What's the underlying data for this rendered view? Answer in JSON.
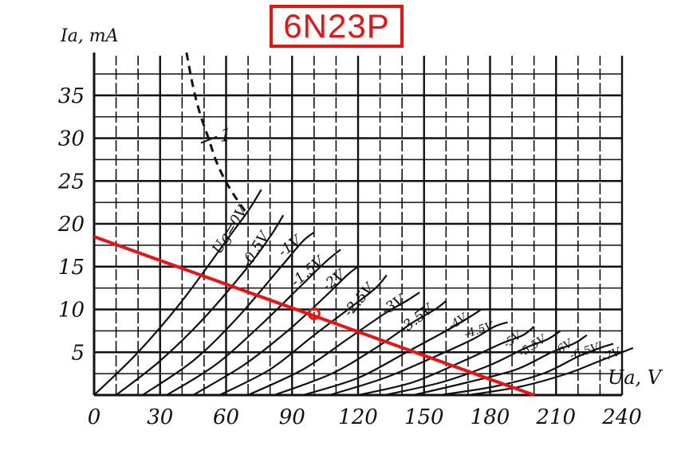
{
  "title": "6N23P",
  "colors": {
    "grid": "#111111",
    "curve": "#111111",
    "load_line": "#ee1111",
    "title": "#ee1111"
  },
  "chart_data": {
    "type": "line",
    "title": "6N23P",
    "ylabel": "Ia, mA",
    "xlabel": "Ua, V",
    "xlim": [
      0,
      240
    ],
    "ylim": [
      0,
      40
    ],
    "x_ticks": [
      "0",
      "30",
      "60",
      "90",
      "120",
      "150",
      "180",
      "210",
      "240"
    ],
    "x_tick_values": [
      0,
      30,
      60,
      90,
      120,
      150,
      180,
      210,
      240
    ],
    "y_ticks": [
      "5",
      "10",
      "15",
      "20",
      "25",
      "30",
      "35"
    ],
    "y_tick_values": [
      5,
      10,
      15,
      20,
      25,
      30,
      35
    ],
    "grid": true,
    "series": [
      {
        "name": "Ug=0V",
        "label": "Ug=0V",
        "x": [
          0,
          20,
          40,
          60,
          70,
          76
        ],
        "y": [
          0,
          5,
          11,
          18,
          21.5,
          24
        ]
      },
      {
        "name": "-0.5V",
        "label": "-0.5V",
        "x": [
          10,
          30,
          50,
          70,
          80,
          86
        ],
        "y": [
          0,
          4,
          9,
          15,
          18.5,
          21
        ]
      },
      {
        "name": "-1V",
        "label": "-1V",
        "x": [
          22,
          45,
          65,
          85,
          95,
          100
        ],
        "y": [
          0,
          4,
          9,
          15,
          18,
          19
        ]
      },
      {
        "name": "-1.5V",
        "label": "-1.5V",
        "x": [
          33,
          55,
          75,
          95,
          105,
          112
        ],
        "y": [
          0,
          3.5,
          8,
          13,
          15.5,
          17
        ]
      },
      {
        "name": "-2V",
        "label": "-2V",
        "x": [
          45,
          68,
          88,
          105,
          115,
          120
        ],
        "y": [
          0,
          3.5,
          7.5,
          11.5,
          14,
          15
        ]
      },
      {
        "name": "-2.5V",
        "label": "-2.5V",
        "x": [
          57,
          80,
          100,
          118,
          128,
          133
        ],
        "y": [
          0,
          3,
          7,
          10.5,
          12.5,
          14
        ]
      },
      {
        "name": "-3V",
        "label": "-3V",
        "x": [
          70,
          95,
          115,
          132,
          142,
          148
        ],
        "y": [
          0,
          3,
          6.5,
          9.5,
          11,
          12
        ]
      },
      {
        "name": "-3.5V",
        "label": "-3.5V",
        "x": [
          82,
          108,
          128,
          145,
          155,
          160
        ],
        "y": [
          0,
          2.5,
          5.5,
          8.5,
          10,
          11
        ]
      },
      {
        "name": "-4V",
        "label": "-4V",
        "x": [
          95,
          120,
          142,
          160,
          170,
          176
        ],
        "y": [
          0,
          2,
          5,
          7.5,
          9,
          10
        ]
      },
      {
        "name": "-4.5V",
        "label": "-4.5V",
        "x": [
          107,
          132,
          155,
          172,
          182,
          188
        ],
        "y": [
          0,
          2,
          4.5,
          6.5,
          8,
          8.5
        ]
      },
      {
        "name": "-5V",
        "label": "-5V",
        "x": [
          120,
          145,
          168,
          185,
          195,
          200
        ],
        "y": [
          0,
          1.5,
          4,
          6,
          7,
          8
        ]
      },
      {
        "name": "-5.5V",
        "label": "-5.5V",
        "x": [
          132,
          158,
          180,
          196,
          206,
          212
        ],
        "y": [
          0,
          1.5,
          3.5,
          5.5,
          6.5,
          7.5
        ]
      },
      {
        "name": "-6V",
        "label": "-6V",
        "x": [
          145,
          170,
          192,
          208,
          218,
          224
        ],
        "y": [
          0,
          1.5,
          3,
          5,
          6,
          7
        ]
      },
      {
        "name": "-6.5V",
        "label": "-6.5V",
        "x": [
          157,
          182,
          204,
          220,
          230,
          236
        ],
        "y": [
          0,
          1,
          2.5,
          4.5,
          5.5,
          6
        ]
      },
      {
        "name": "-7V",
        "label": "-7V",
        "x": [
          170,
          194,
          215,
          230,
          240,
          245
        ],
        "y": [
          0,
          1,
          2.5,
          4,
          5,
          5.5
        ]
      }
    ],
    "dissipation_curve": {
      "label": "1",
      "x": [
        42,
        45,
        48,
        52,
        56,
        62,
        70
      ],
      "y": [
        40,
        36,
        33,
        30,
        27,
        24,
        21
      ]
    },
    "load_line": {
      "x": [
        0,
        200
      ],
      "y": [
        18.5,
        0
      ]
    },
    "operating_point": {
      "x": 100,
      "y": 9.5
    }
  }
}
